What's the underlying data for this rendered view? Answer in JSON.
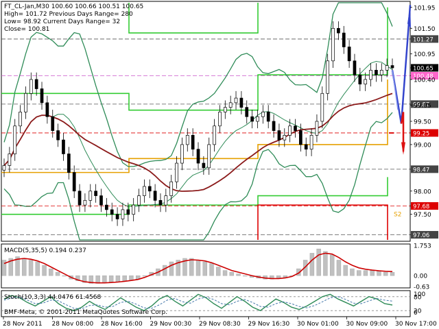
{
  "window": {
    "title": "FT_CL-Jan,M30"
  },
  "header": {
    "line1": "FT_CL-Jan,M30  100.60 100.66 100.51 100.65",
    "line2": "High= 101.72   Previous Days Range= 280",
    "line3": "Low= 98.92    Current Days Range= 32",
    "line4": "Close= 100.81"
  },
  "colors": {
    "candles": "#000000",
    "bollinger": "#2e8b57",
    "ma": "#8b1a1a",
    "levels_green": "#33cc33",
    "levels_orange": "#e6a000",
    "levels_red": "#dd0000",
    "projection_blue": "#3344cc",
    "projection_red": "#dd1111",
    "macd_hist": "#c0c0c0",
    "macd_signal": "#cc0000",
    "stoch_main": "#2e8b57",
    "stoch_signal": "#4477aa"
  },
  "chart_data": [
    {
      "type": "candlestick",
      "panel": "price",
      "y_ticks": [
        "101.95",
        "101.50",
        "101.27",
        "100.95",
        "100.65",
        "100.48",
        "100.40",
        "99.87",
        "99.85",
        "99.50",
        "99.25",
        "99.00",
        "98.47",
        "98.00",
        "97.68",
        "97.50",
        "97.06"
      ],
      "ylim": [
        96.95,
        102.05
      ],
      "price_tags": [
        {
          "value": "101.27",
          "color": "#444444"
        },
        {
          "value": "100.65",
          "color": "#000000"
        },
        {
          "value": "100.48",
          "color": "#ff66cc"
        },
        {
          "value": "99.87",
          "color": "#444444"
        },
        {
          "value": "99.25",
          "color": "#dd0000"
        },
        {
          "value": "98.47",
          "color": "#444444"
        },
        {
          "value": "97.68",
          "color": "#dd0000"
        },
        {
          "value": "97.06",
          "color": "#444444"
        }
      ],
      "dashed_levels": [
        101.27,
        100.48,
        99.87,
        99.25,
        98.47,
        97.68,
        97.06
      ],
      "text_labels": [
        "S2"
      ],
      "session_high": 101.72,
      "session_low": 98.92,
      "close": [
        98.55,
        98.8,
        99.4,
        99.7,
        100.1,
        100.4,
        100.2,
        99.9,
        99.6,
        99.3,
        99.1,
        98.8,
        98.4,
        98.0,
        97.7,
        97.8,
        98.0,
        97.9,
        97.7,
        97.6,
        97.5,
        97.4,
        97.6,
        97.5,
        97.7,
        97.9,
        98.1,
        98.0,
        97.8,
        97.7,
        97.9,
        98.2,
        98.6,
        99.0,
        99.2,
        98.9,
        98.6,
        98.5,
        99.0,
        99.4,
        99.7,
        99.8,
        99.9,
        100.0,
        99.8,
        99.6,
        99.5,
        99.6,
        99.7,
        99.5,
        99.3,
        99.1,
        99.2,
        99.4,
        99.3,
        99.0,
        98.9,
        99.2,
        99.5,
        100.1,
        100.8,
        101.5,
        101.4,
        101.1,
        100.8,
        100.5,
        100.3,
        100.4,
        100.6,
        100.5,
        100.6,
        100.7,
        100.65
      ]
    },
    {
      "type": "histogram_line",
      "panel": "macd",
      "title": "MACD(5,35,5) 0.194 0.237",
      "y_ticks": [
        "1.753",
        "0.00",
        "-0.63"
      ],
      "ylim": [
        -0.63,
        1.753
      ],
      "histogram": [
        0.9,
        1.0,
        1.1,
        1.0,
        0.9,
        0.8,
        0.6,
        0.4,
        0.2,
        0.0,
        -0.2,
        -0.3,
        -0.4,
        -0.45,
        -0.45,
        -0.4,
        -0.4,
        -0.35,
        -0.3,
        -0.25,
        -0.2,
        0.0,
        0.2,
        0.4,
        0.6,
        0.8,
        0.9,
        1.0,
        1.0,
        0.9,
        0.8,
        0.7,
        0.5,
        0.3,
        0.2,
        0.1,
        0.0,
        -0.1,
        -0.15,
        -0.2,
        -0.2,
        -0.15,
        -0.1,
        0.0,
        0.4,
        0.9,
        1.3,
        1.55,
        1.4,
        1.2,
        0.9,
        0.6,
        0.4,
        0.3,
        0.3,
        0.3,
        0.25,
        0.2,
        0.19
      ],
      "signal": [
        0.7,
        0.85,
        0.95,
        1.0,
        0.95,
        0.85,
        0.7,
        0.5,
        0.3,
        0.1,
        -0.1,
        -0.25,
        -0.35,
        -0.4,
        -0.42,
        -0.42,
        -0.4,
        -0.37,
        -0.33,
        -0.28,
        -0.22,
        -0.1,
        0.05,
        0.2,
        0.4,
        0.6,
        0.75,
        0.85,
        0.92,
        0.9,
        0.85,
        0.75,
        0.6,
        0.45,
        0.3,
        0.2,
        0.1,
        0.0,
        -0.08,
        -0.14,
        -0.17,
        -0.17,
        -0.13,
        -0.05,
        0.15,
        0.5,
        0.9,
        1.2,
        1.3,
        1.25,
        1.05,
        0.8,
        0.6,
        0.45,
        0.37,
        0.32,
        0.28,
        0.25,
        0.237
      ]
    },
    {
      "type": "line",
      "panel": "stochastic",
      "title": "Stoch(10,3,3) 44.0476 61.4568",
      "y_ticks": [
        "100",
        "80",
        "20",
        "0"
      ],
      "ylim": [
        0,
        100
      ],
      "main": [
        70,
        85,
        75,
        55,
        40,
        60,
        80,
        50,
        30,
        20,
        35,
        60,
        40,
        25,
        50,
        75,
        55,
        35,
        20,
        40,
        70,
        85,
        60,
        40,
        65,
        90,
        75,
        50,
        30,
        55,
        80,
        60,
        35,
        20,
        45,
        70,
        55,
        35,
        25,
        40,
        60,
        80,
        90,
        70,
        55,
        40,
        60,
        80,
        70,
        50,
        44
      ],
      "signal": [
        65,
        75,
        78,
        65,
        50,
        52,
        65,
        62,
        45,
        30,
        28,
        42,
        45,
        35,
        38,
        55,
        60,
        48,
        32,
        30,
        45,
        65,
        72,
        58,
        52,
        70,
        78,
        68,
        50,
        45,
        60,
        68,
        55,
        38,
        35,
        50,
        58,
        50,
        38,
        32,
        42,
        58,
        75,
        80,
        68,
        52,
        50,
        62,
        72,
        65,
        61
      ]
    }
  ],
  "x_axis": {
    "labels": [
      "28 Nov 2011",
      "28 Nov 08:00",
      "28 Nov 16:00",
      "29 Nov 00:30",
      "29 Nov 08:30",
      "29 Nov 16:30",
      "30 Nov 01:00",
      "30 Nov 09:00",
      "30 Nov 17:00"
    ]
  },
  "watermark": "BMF-Meta, © 2001-2011 MetaQuotes Software Corp."
}
